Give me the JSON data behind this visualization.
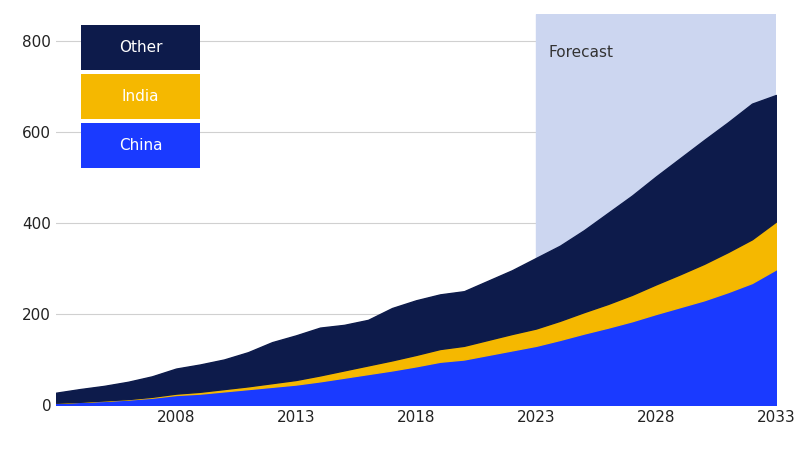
{
  "background_color": "#ffffff",
  "forecast_start": 2023,
  "forecast_color": "#ccd6f0",
  "forecast_label": "Forecast",
  "xlim": [
    2003,
    2033
  ],
  "ylim": [
    0,
    860
  ],
  "yticks": [
    0,
    200,
    400,
    600,
    800
  ],
  "xticks": [
    2008,
    2013,
    2018,
    2023,
    2028,
    2033
  ],
  "grid_color": "#d0d0d0",
  "colors": {
    "China": "#1a3aff",
    "India": "#f5b800",
    "Other": "#0d1b4b"
  },
  "legend_order": [
    "Other",
    "India",
    "China"
  ],
  "years": [
    2003,
    2004,
    2005,
    2006,
    2007,
    2008,
    2009,
    2010,
    2011,
    2012,
    2013,
    2014,
    2015,
    2016,
    2017,
    2018,
    2019,
    2020,
    2021,
    2022,
    2023,
    2024,
    2025,
    2026,
    2027,
    2028,
    2029,
    2030,
    2031,
    2032,
    2033
  ],
  "china": [
    5,
    7,
    9,
    12,
    16,
    22,
    25,
    30,
    35,
    40,
    45,
    52,
    60,
    68,
    76,
    85,
    95,
    100,
    110,
    120,
    130,
    143,
    157,
    170,
    184,
    200,
    215,
    230,
    248,
    268,
    298
  ],
  "india": [
    0,
    0,
    1,
    1,
    2,
    3,
    4,
    5,
    6,
    8,
    10,
    13,
    16,
    19,
    22,
    25,
    28,
    30,
    33,
    36,
    38,
    42,
    47,
    52,
    58,
    65,
    72,
    80,
    88,
    96,
    105
  ],
  "other": [
    22,
    28,
    32,
    38,
    45,
    55,
    60,
    65,
    75,
    90,
    98,
    105,
    100,
    100,
    115,
    120,
    120,
    120,
    130,
    140,
    155,
    165,
    180,
    200,
    218,
    237,
    255,
    272,
    285,
    298,
    278
  ]
}
